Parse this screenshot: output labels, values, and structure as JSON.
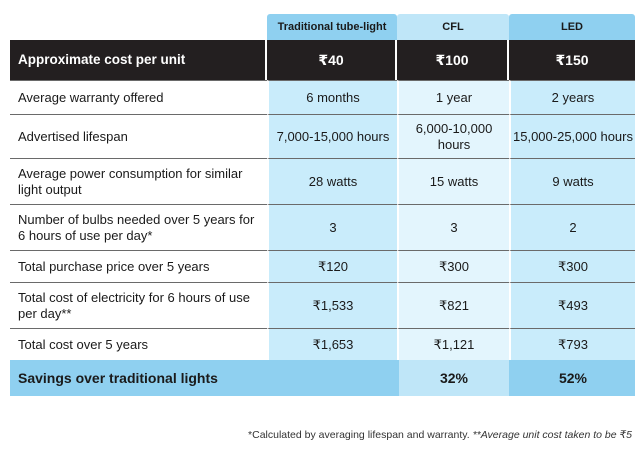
{
  "headers": [
    "Traditional tube-light",
    "CFL",
    "LED"
  ],
  "unit_row": {
    "label": "Approximate cost per unit",
    "values": [
      "₹40",
      "₹100",
      "₹150"
    ]
  },
  "rows": [
    {
      "label": "Average warranty offered",
      "values": [
        "6 months",
        "1 year",
        "2 years"
      ]
    },
    {
      "label": "Advertised lifespan",
      "values": [
        "7,000-15,000 hours",
        "6,000-10,000 hours",
        "15,000-25,000 hours"
      ]
    },
    {
      "label": "Average power consumption for similar light output",
      "values": [
        "28 watts",
        "15 watts",
        "9 watts"
      ]
    },
    {
      "label": "Number of bulbs needed over 5 years for 6 hours of use per day*",
      "values": [
        "3",
        "3",
        "2"
      ]
    },
    {
      "label": "Total purchase price over 5 years",
      "values": [
        "₹120",
        "₹300",
        "₹300"
      ]
    },
    {
      "label": "Total cost of electricity for 6 hours of use per day**",
      "values": [
        "₹1,533",
        "₹821",
        "₹493"
      ]
    },
    {
      "label": "Total cost over 5 years",
      "values": [
        "₹1,653",
        "₹1,121",
        "₹793"
      ]
    }
  ],
  "savings_row": {
    "label": "Savings over traditional lights",
    "values": [
      "",
      "32%",
      "52%"
    ]
  },
  "footnote": {
    "first": "*Calculated by averaging lifespan and warranty.",
    "second": "**Average unit cost taken to be ₹5"
  },
  "colors": {
    "header_dark": "#231f20",
    "accent_blue": "#8fd0f0",
    "light_blue": "#c9ecfb"
  }
}
